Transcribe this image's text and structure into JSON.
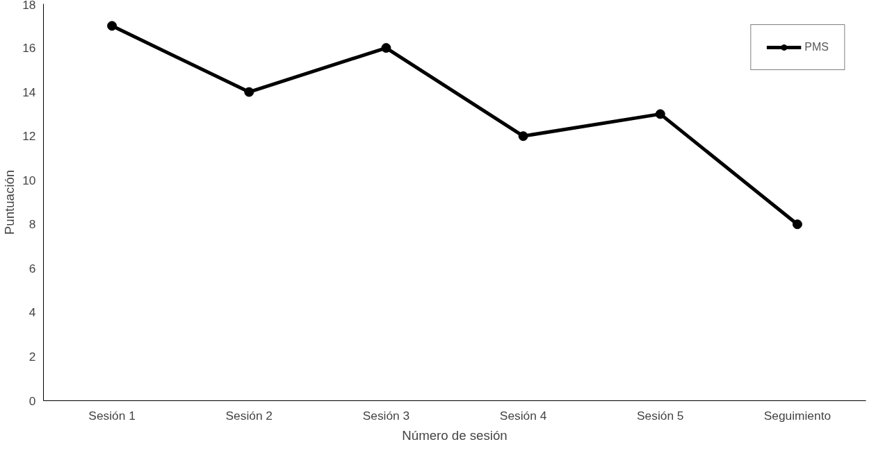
{
  "chart_data": {
    "type": "line",
    "xlabel": "Número de sesión",
    "ylabel": "Puntuación",
    "categories": [
      "Sesión 1",
      "Sesión 2",
      "Sesión 3",
      "Sesión 4",
      "Sesión 5",
      "Seguimiento"
    ],
    "series": [
      {
        "name": "PMS",
        "color": "#000000",
        "values": [
          17,
          14,
          16,
          12,
          13,
          8
        ]
      }
    ],
    "ylim": [
      0,
      18
    ],
    "yticks": [
      0,
      2,
      4,
      6,
      8,
      10,
      12,
      14,
      16,
      18
    ],
    "grid": false,
    "legend": "top right",
    "marker": "circle",
    "line_style": "solid"
  }
}
